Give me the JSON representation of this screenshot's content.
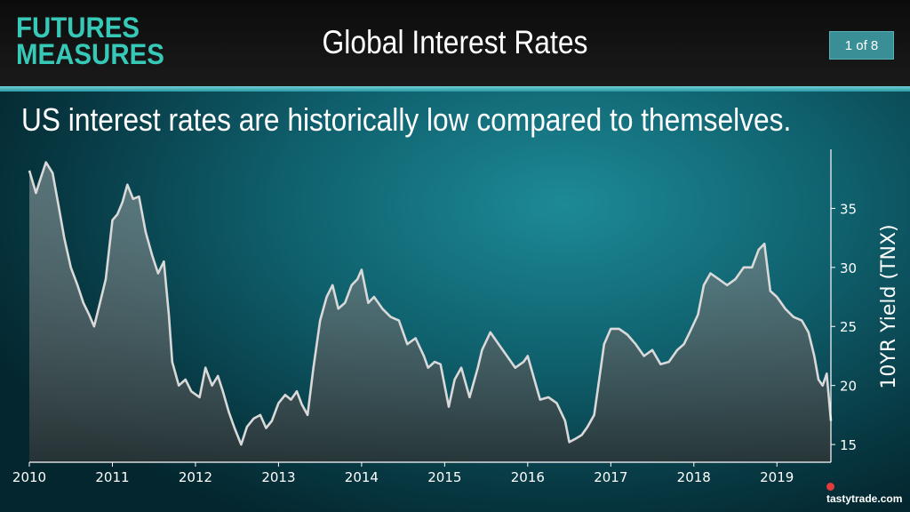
{
  "header": {
    "logo_line1": "FUTURES",
    "logo_line2": "MEASURES",
    "title": "Global Interest Rates",
    "page_indicator": "1 of 8"
  },
  "subtitle": "US interest rates are historically low compared to themselves.",
  "branding": {
    "text": "tastytrade.com"
  },
  "colors": {
    "accent": "#37c9b8",
    "line": "#d9d9d9",
    "page_badge": "#3a8f97"
  },
  "chart_data": {
    "type": "area",
    "title": "",
    "xlabel": "",
    "ylabel": "10YR Yield (TNX)",
    "y_axis_position": "right",
    "xlim": [
      2010.0,
      2019.65
    ],
    "ylim": [
      13.5,
      40.0
    ],
    "x_ticks": [
      2010,
      2011,
      2012,
      2013,
      2014,
      2015,
      2016,
      2017,
      2018,
      2019
    ],
    "y_ticks": [
      15,
      20,
      25,
      30,
      35
    ],
    "grid": false,
    "series": [
      {
        "name": "",
        "x": [
          2010.0,
          2010.08,
          2010.12,
          2010.2,
          2010.28,
          2010.35,
          2010.42,
          2010.5,
          2010.58,
          2010.65,
          2010.72,
          2010.78,
          2010.85,
          2010.92,
          2011.0,
          2011.06,
          2011.12,
          2011.18,
          2011.25,
          2011.32,
          2011.4,
          2011.48,
          2011.55,
          2011.62,
          2011.68,
          2011.72,
          2011.8,
          2011.88,
          2011.95,
          2012.05,
          2012.12,
          2012.2,
          2012.27,
          2012.33,
          2012.4,
          2012.47,
          2012.55,
          2012.62,
          2012.7,
          2012.78,
          2012.85,
          2012.92,
          2013.0,
          2013.08,
          2013.15,
          2013.22,
          2013.28,
          2013.35,
          2013.42,
          2013.5,
          2013.58,
          2013.65,
          2013.72,
          2013.8,
          2013.88,
          2013.95,
          2014.0,
          2014.08,
          2014.15,
          2014.25,
          2014.35,
          2014.45,
          2014.55,
          2014.65,
          2014.75,
          2014.8,
          2014.88,
          2014.95,
          2015.05,
          2015.12,
          2015.2,
          2015.3,
          2015.4,
          2015.45,
          2015.55,
          2015.65,
          2015.75,
          2015.85,
          2015.95,
          2016.0,
          2016.08,
          2016.15,
          2016.25,
          2016.35,
          2016.45,
          2016.5,
          2016.58,
          2016.65,
          2016.72,
          2016.8,
          2016.85,
          2016.92,
          2017.0,
          2017.1,
          2017.2,
          2017.3,
          2017.4,
          2017.5,
          2017.6,
          2017.7,
          2017.8,
          2017.88,
          2017.95,
          2018.05,
          2018.12,
          2018.2,
          2018.3,
          2018.4,
          2018.5,
          2018.6,
          2018.7,
          2018.78,
          2018.85,
          2018.92,
          2019.0,
          2019.1,
          2019.2,
          2019.3,
          2019.38,
          2019.45,
          2019.5,
          2019.55,
          2019.6,
          2019.65
        ],
        "values": [
          38.2,
          36.3,
          37.2,
          38.9,
          38.0,
          35.3,
          32.5,
          30.0,
          28.5,
          27.0,
          26.0,
          25.0,
          27.0,
          29.0,
          34.0,
          34.5,
          35.5,
          37.0,
          35.8,
          36.0,
          33.0,
          31.0,
          29.5,
          30.5,
          26.0,
          22.0,
          20.0,
          20.5,
          19.5,
          19.0,
          21.5,
          20.0,
          20.8,
          19.5,
          17.8,
          16.4,
          15.0,
          16.5,
          17.2,
          17.5,
          16.4,
          17.0,
          18.5,
          19.2,
          18.8,
          19.5,
          18.4,
          17.5,
          21.5,
          25.5,
          27.5,
          28.5,
          26.5,
          27.0,
          28.5,
          29.0,
          29.8,
          27.0,
          27.5,
          26.5,
          25.8,
          25.5,
          23.5,
          24.0,
          22.5,
          21.5,
          22.0,
          21.8,
          18.2,
          20.5,
          21.5,
          19.0,
          21.5,
          23.0,
          24.5,
          23.5,
          22.5,
          21.5,
          22.0,
          22.5,
          20.5,
          18.8,
          19.0,
          18.5,
          17.0,
          15.2,
          15.5,
          15.8,
          16.5,
          17.5,
          20.0,
          23.5,
          24.8,
          24.8,
          24.3,
          23.5,
          22.5,
          23.0,
          21.8,
          22.0,
          23.0,
          23.5,
          24.5,
          26.0,
          28.5,
          29.5,
          29.0,
          28.5,
          29.0,
          30.0,
          30.0,
          31.5,
          32.0,
          28.0,
          27.5,
          26.5,
          25.8,
          25.5,
          24.5,
          22.5,
          20.5,
          20.0,
          21.0,
          17.0
        ]
      }
    ]
  }
}
